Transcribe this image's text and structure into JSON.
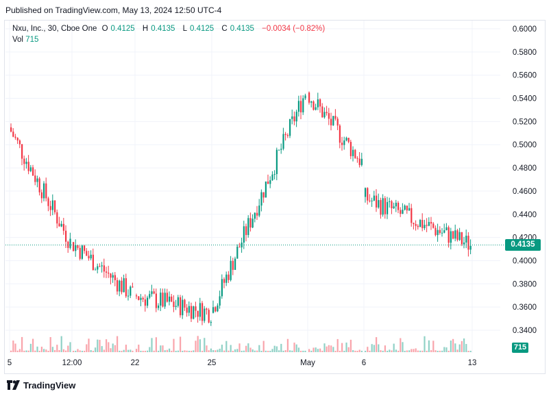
{
  "header": {
    "published": "Published on TradingView.com, May 13, 2024 12:50 UTC-4"
  },
  "legend": {
    "symbol": "Nxu, Inc., 30, Cboe One",
    "o_label": "O",
    "o_value": "0.4125",
    "h_label": "H",
    "h_value": "0.4135",
    "l_label": "L",
    "l_value": "0.4125",
    "c_label": "C",
    "c_value": "0.4135",
    "change": "−0.0034 (−0.82%)",
    "vol_label": "Vol",
    "vol_value": "715"
  },
  "price_axis": {
    "labels": [
      "0.6000",
      "0.5800",
      "0.5600",
      "0.5400",
      "0.5200",
      "0.5000",
      "0.4800",
      "0.4600",
      "0.4400",
      "0.4200",
      "0.4000",
      "0.3800",
      "0.3600",
      "0.3400"
    ],
    "current_price": "0.4135",
    "current_volume": "715"
  },
  "time_axis": {
    "labels": [
      "5",
      "12:00",
      "22",
      "25",
      "May",
      "6",
      "13"
    ]
  },
  "footer": {
    "brand": "TradingView"
  },
  "colors": {
    "up": "#089981",
    "down": "#f23645",
    "grid": "#f0f3fa",
    "border": "#e0e3eb"
  },
  "chart_data": {
    "type": "candlestick",
    "symbol": "Nxu, Inc.",
    "interval": "30",
    "ylim": [
      0.33,
      0.605
    ],
    "last_close": 0.4135,
    "segments": [
      {
        "from_label": "5",
        "to_label": "12:00",
        "open": 0.515,
        "close": 0.416
      },
      {
        "from_label": "12:00",
        "to_label": "22",
        "open": 0.416,
        "close": 0.37
      },
      {
        "from_label": "22",
        "to_label": "25",
        "open": 0.37,
        "close": 0.355
      },
      {
        "from_label": "25",
        "to_label": "May",
        "open": 0.355,
        "close": 0.545
      },
      {
        "from_label": "May",
        "to_label": "6",
        "open": 0.545,
        "close": 0.485
      },
      {
        "from_label": "6",
        "to_label": "13",
        "open": 0.455,
        "close": 0.4135
      }
    ]
  }
}
